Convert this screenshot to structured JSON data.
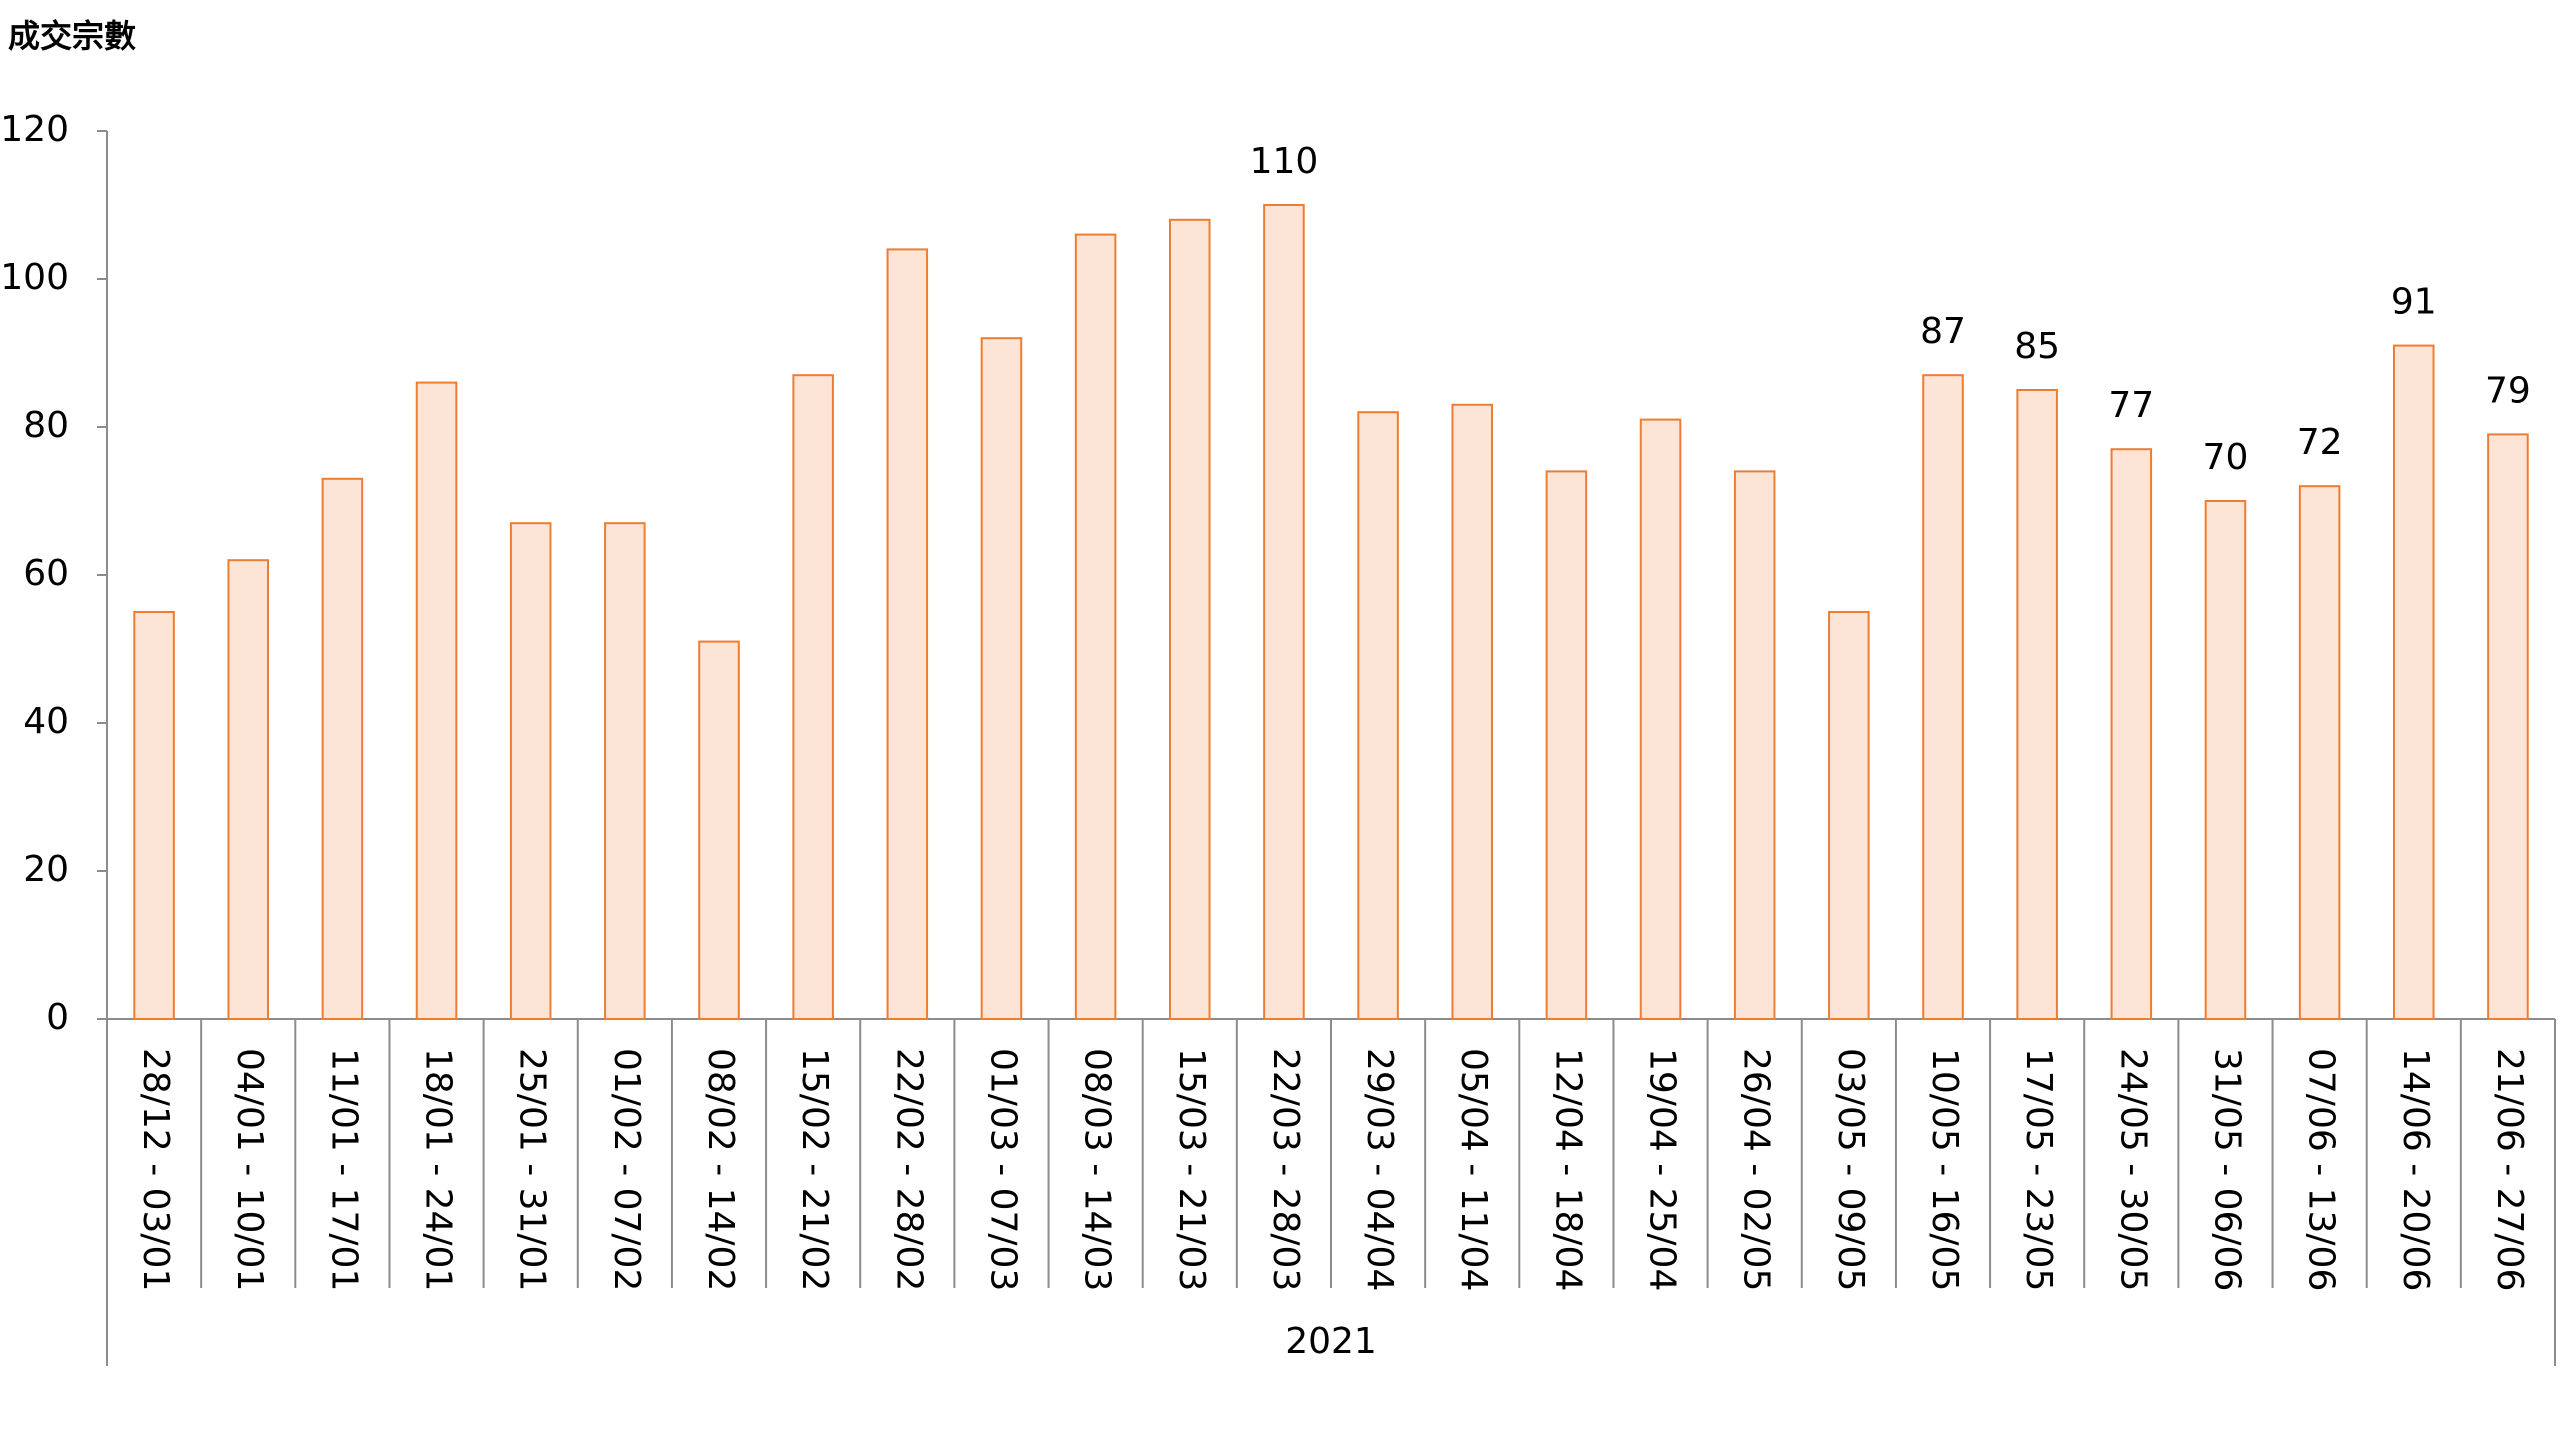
{
  "chart_data": {
    "type": "bar",
    "y_axis_title": "成交宗數",
    "group_label": "2021",
    "categories": [
      "28/12 - 03/01",
      "04/01 - 10/01",
      "11/01 - 17/01",
      "18/01 - 24/01",
      "25/01 - 31/01",
      "01/02 - 07/02",
      "08/02 - 14/02",
      "15/02 - 21/02",
      "22/02 - 28/02",
      "01/03 - 07/03",
      "08/03 - 14/03",
      "15/03 - 21/03",
      "22/03 - 28/03",
      "29/03 - 04/04",
      "05/04 - 11/04",
      "12/04 - 18/04",
      "19/04 - 25/04",
      "26/04 - 02/05",
      "03/05 - 09/05",
      "10/05 - 16/05",
      "17/05 - 23/05",
      "24/05 - 30/05",
      "31/05 - 06/06",
      "07/06 - 13/06",
      "14/06 - 20/06",
      "21/06 - 27/06"
    ],
    "values": [
      55,
      62,
      73,
      86,
      67,
      67,
      51,
      87,
      104,
      92,
      106,
      108,
      110,
      82,
      83,
      74,
      81,
      74,
      55,
      87,
      85,
      77,
      70,
      72,
      91,
      79
    ],
    "value_labels": [
      null,
      null,
      null,
      null,
      null,
      null,
      null,
      null,
      null,
      null,
      null,
      null,
      "110",
      null,
      null,
      null,
      null,
      null,
      null,
      "87",
      "85",
      "77",
      "70",
      "72",
      "91",
      "79"
    ],
    "color": "#fce4d6",
    "edge_color": "#ed7d31",
    "ylim": [
      0,
      120
    ],
    "yticks": [
      0,
      20,
      40,
      60,
      80,
      100,
      120
    ],
    "grid": false
  }
}
